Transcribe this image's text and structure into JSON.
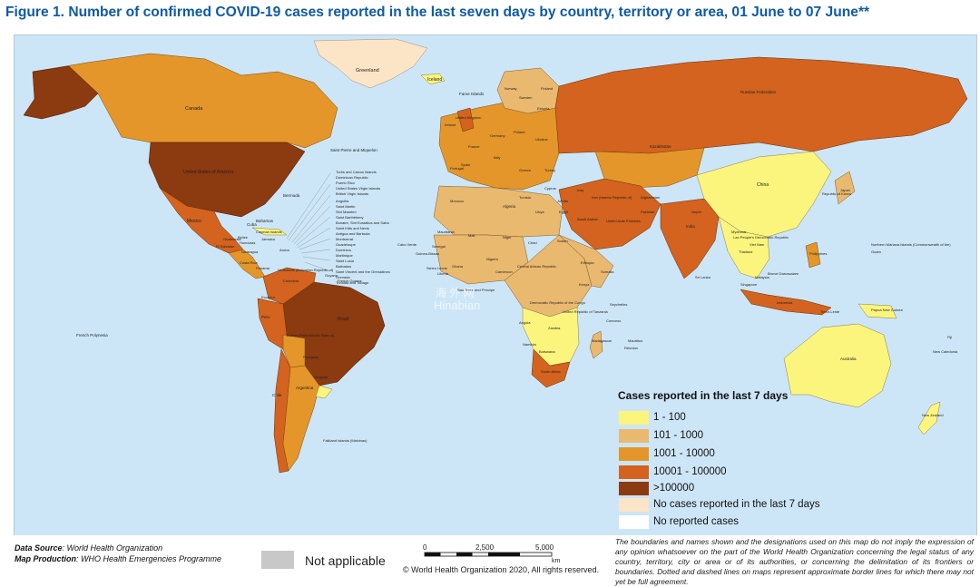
{
  "title": "Figure 1. Number of confirmed COVID-19 cases reported in the last seven days by country, territory or area, 01 June to 07 June**",
  "colors": {
    "ocean": "#cde6f7",
    "c1_100": "#fbf57d",
    "c101_1000": "#e9b96f",
    "c1001_10000": "#e4962a",
    "c10001_100000": "#d3631e",
    "c100000": "#8c3a10",
    "no_cases_7d": "#fbe5c6",
    "no_reported": "#ffffff",
    "not_applicable": "#c8c8c8",
    "title": "#0e5aa7"
  },
  "legend": {
    "title": "Cases reported in the last 7 days",
    "items": [
      {
        "label": "1 - 100",
        "color": "#fbf57d"
      },
      {
        "label": "101 - 1000",
        "color": "#e9b96f"
      },
      {
        "label": "1001 - 10000",
        "color": "#e4962a"
      },
      {
        "label": "10001 - 100000",
        "color": "#d3631e"
      },
      {
        "label": ">100000",
        "color": "#8c3a10"
      },
      {
        "label": "No cases reported in the last 7 days",
        "color": "#fbe5c6"
      },
      {
        "label": "No reported cases",
        "color": "#ffffff"
      }
    ]
  },
  "map_labels": {
    "greenland": "Greenland",
    "iceland": "Iceland",
    "faroe": "Faroe Islands",
    "canada": "Canada",
    "usa": "United States of America",
    "mexico": "Mexico",
    "bermuda": "Bermuda",
    "bahamas": "Bahamas",
    "cuba": "Cuba",
    "spm": "Saint Pierre and Miquelon",
    "brazil": "Brazil",
    "bolivia": "Bolivia (Plurinational State of)",
    "peru": "Peru",
    "colombia": "Colombia",
    "venezuela": "Venezuela (Bolivarian Republic of)",
    "argentina": "Argentina",
    "chile": "Chile",
    "falkland": "Falkland Islands (Malvinas)",
    "french_polynesia": "French Polynesia",
    "russia": "Russian Federation",
    "kazakhstan": "Kazakhstan",
    "china": "China",
    "india": "India",
    "japan": "Japan",
    "korea": "Republic of Korea",
    "australia": "Australia",
    "new_zealand": "New Zealand",
    "new_caledonia": "New Caledonia",
    "fiji": "Fiji",
    "guam": "Guam",
    "northern_mariana": "Northern Mariana Islands (Commonwealth of the)",
    "png": "Papua New Guinea",
    "timor": "Timor-Leste",
    "philippines": "Philippines",
    "indonesia": "Indonesia",
    "malaysia": "Malaysia",
    "singapore": "Singapore",
    "brunei": "Brunei Darussalam",
    "viet_nam": "Viet Nam",
    "lao": "Lao People's Democratic Republic",
    "thailand": "Thailand",
    "myanmar": "Myanmar",
    "nepal": "Nepal",
    "sri_lanka": "Sri Lanka",
    "iran": "Iran (Islamic Republic of)",
    "afghanistan": "Afghanistan",
    "pakistan": "Pakistan",
    "saudi": "Saudi Arabia",
    "uae": "United Arab Emirates",
    "algeria": "Algeria",
    "libya": "Libya",
    "egypt": "Egypt",
    "niger": "Niger",
    "chad": "Chad",
    "sudan": "Sudan",
    "ethiopia": "Ethiopia",
    "somalia": "Somalia",
    "kenya": "Kenya",
    "tanzania": "United Republic of Tanzania",
    "drc": "Democratic Republic of the Congo",
    "angola": "Angola",
    "zambia": "Zambia",
    "namibia": "Namibia",
    "botswana": "Botswana",
    "south_africa": "South Africa",
    "madagascar": "Madagascar",
    "mauritius": "Mauritius",
    "reunion": "Réunion",
    "seychelles": "Seychelles",
    "comoros": "Comoros",
    "nigeria": "Nigeria",
    "cameroon": "Cameroon",
    "car": "Central African Republic",
    "mauritania": "Mauritania",
    "mali": "Mali",
    "senegal": "Senegal",
    "cabo_verde": "Cabo Verde",
    "guinea_bissau": "Guinea-Bissau",
    "sierra_leone": "Sierra Leone",
    "liberia": "Liberia",
    "ghana": "Ghana",
    "sao_tome": "Sao Tome and Principe",
    "morocco": "Morocco",
    "tunisia": "Tunisia",
    "portugal": "Portugal",
    "spain": "Spain",
    "france": "France",
    "uk": "United Kingdom",
    "ireland": "Ireland",
    "germany": "Germany",
    "italy": "Italy",
    "poland": "Poland",
    "ukraine": "Ukraine",
    "norway": "Norway",
    "sweden": "Sweden",
    "finland": "Finland",
    "estonia": "Estonia",
    "turkey": "Turkey",
    "greece": "Greece",
    "cyprus": "Cyprus",
    "jordan": "Jordan",
    "iraq": "Iraq",
    "guatemala": "Guatemala",
    "el_salvador": "El Salvador",
    "nicaragua": "Nicaragua",
    "costa_rica": "Costa Rica",
    "panama": "Panama",
    "jamaica": "Jamaica",
    "cayman": "Cayman Islands",
    "belize": "Belize",
    "honduras": "Honduras",
    "aruba": "Aruba",
    "guyana": "Guyana",
    "french_guiana": "French Guiana",
    "uruguay": "Uruguay",
    "paraguay": "Paraguay",
    "ecuador": "Ecuador",
    "caribbean_list": [
      "Turks and Caicos Islands",
      "Dominican Republic",
      "Puerto Rico",
      "United States Virgin Islands",
      "British Virgin Islands",
      "Anguilla",
      "Saint Martin",
      "Sint Maarten",
      "Saint Barthélemy",
      "Bonaire, Sint Eustatius and Saba",
      "Saint Kitts and Nevis",
      "Antigua and Barbuda",
      "Montserrat",
      "Guadeloupe",
      "Dominica",
      "Martinique",
      "Saint Lucia",
      "Barbados",
      "Saint Vincent and the Grenadines",
      "Grenada",
      "Trinidad and Tobago"
    ]
  },
  "watermark": {
    "line1": "海 外 网",
    "line2": "Hinabian"
  },
  "footer": {
    "data_source_label": "Data Source",
    "data_source_value": ": World Health Organization",
    "map_production_label": "Map Production",
    "map_production_value": ": WHO Health Emergencies Programme",
    "not_applicable": "Not applicable",
    "copyright": "© World Health Organization  2020,  All rights reserved.",
    "scale_ticks": [
      "0",
      "2,500",
      "5,000"
    ],
    "scale_unit": "km",
    "disclaimer": "The boundaries and names shown and the designations used on this map do not imply the expression of any opinion whatsoever on the part of the World Health Organization concerning the legal status of any country, territory, city or area or of its authorities, or concerning the delimitation of its frontiers or boundaries. Dotted and dashed lines on maps represent approximate border lines for which there may not yet be full agreement."
  }
}
